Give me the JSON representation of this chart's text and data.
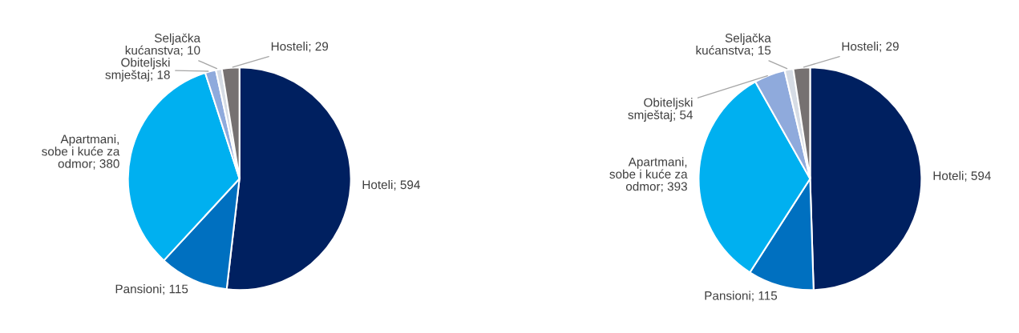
{
  "chart_data": [
    {
      "type": "pie",
      "categories": [
        "Hoteli; 594",
        "Pansioni; 115",
        "Apartmani,\nsobe i kuće za\nodmor; 380",
        "Obiteljski\nsmještaj; 18",
        "Seljačka\nkućanstva; 10",
        "Hosteli; 29"
      ],
      "values": [
        594,
        115,
        380,
        18,
        10,
        29
      ],
      "colors": [
        "#002060",
        "#0070c0",
        "#00b0f0",
        "#8faadc",
        "#d6dce5",
        "#767171"
      ]
    },
    {
      "type": "pie",
      "categories": [
        "Hoteli; 594",
        "Pansioni; 115",
        "Apartmani,\nsobe i kuće za\nodmor; 393",
        "Obiteljski\nsmještaj; 54",
        "Seljačka\nkućanstva; 15",
        "Hosteli; 29"
      ],
      "values": [
        594,
        115,
        393,
        54,
        15,
        29
      ],
      "colors": [
        "#002060",
        "#0070c0",
        "#00b0f0",
        "#8faadc",
        "#d6dce5",
        "#767171"
      ]
    }
  ]
}
